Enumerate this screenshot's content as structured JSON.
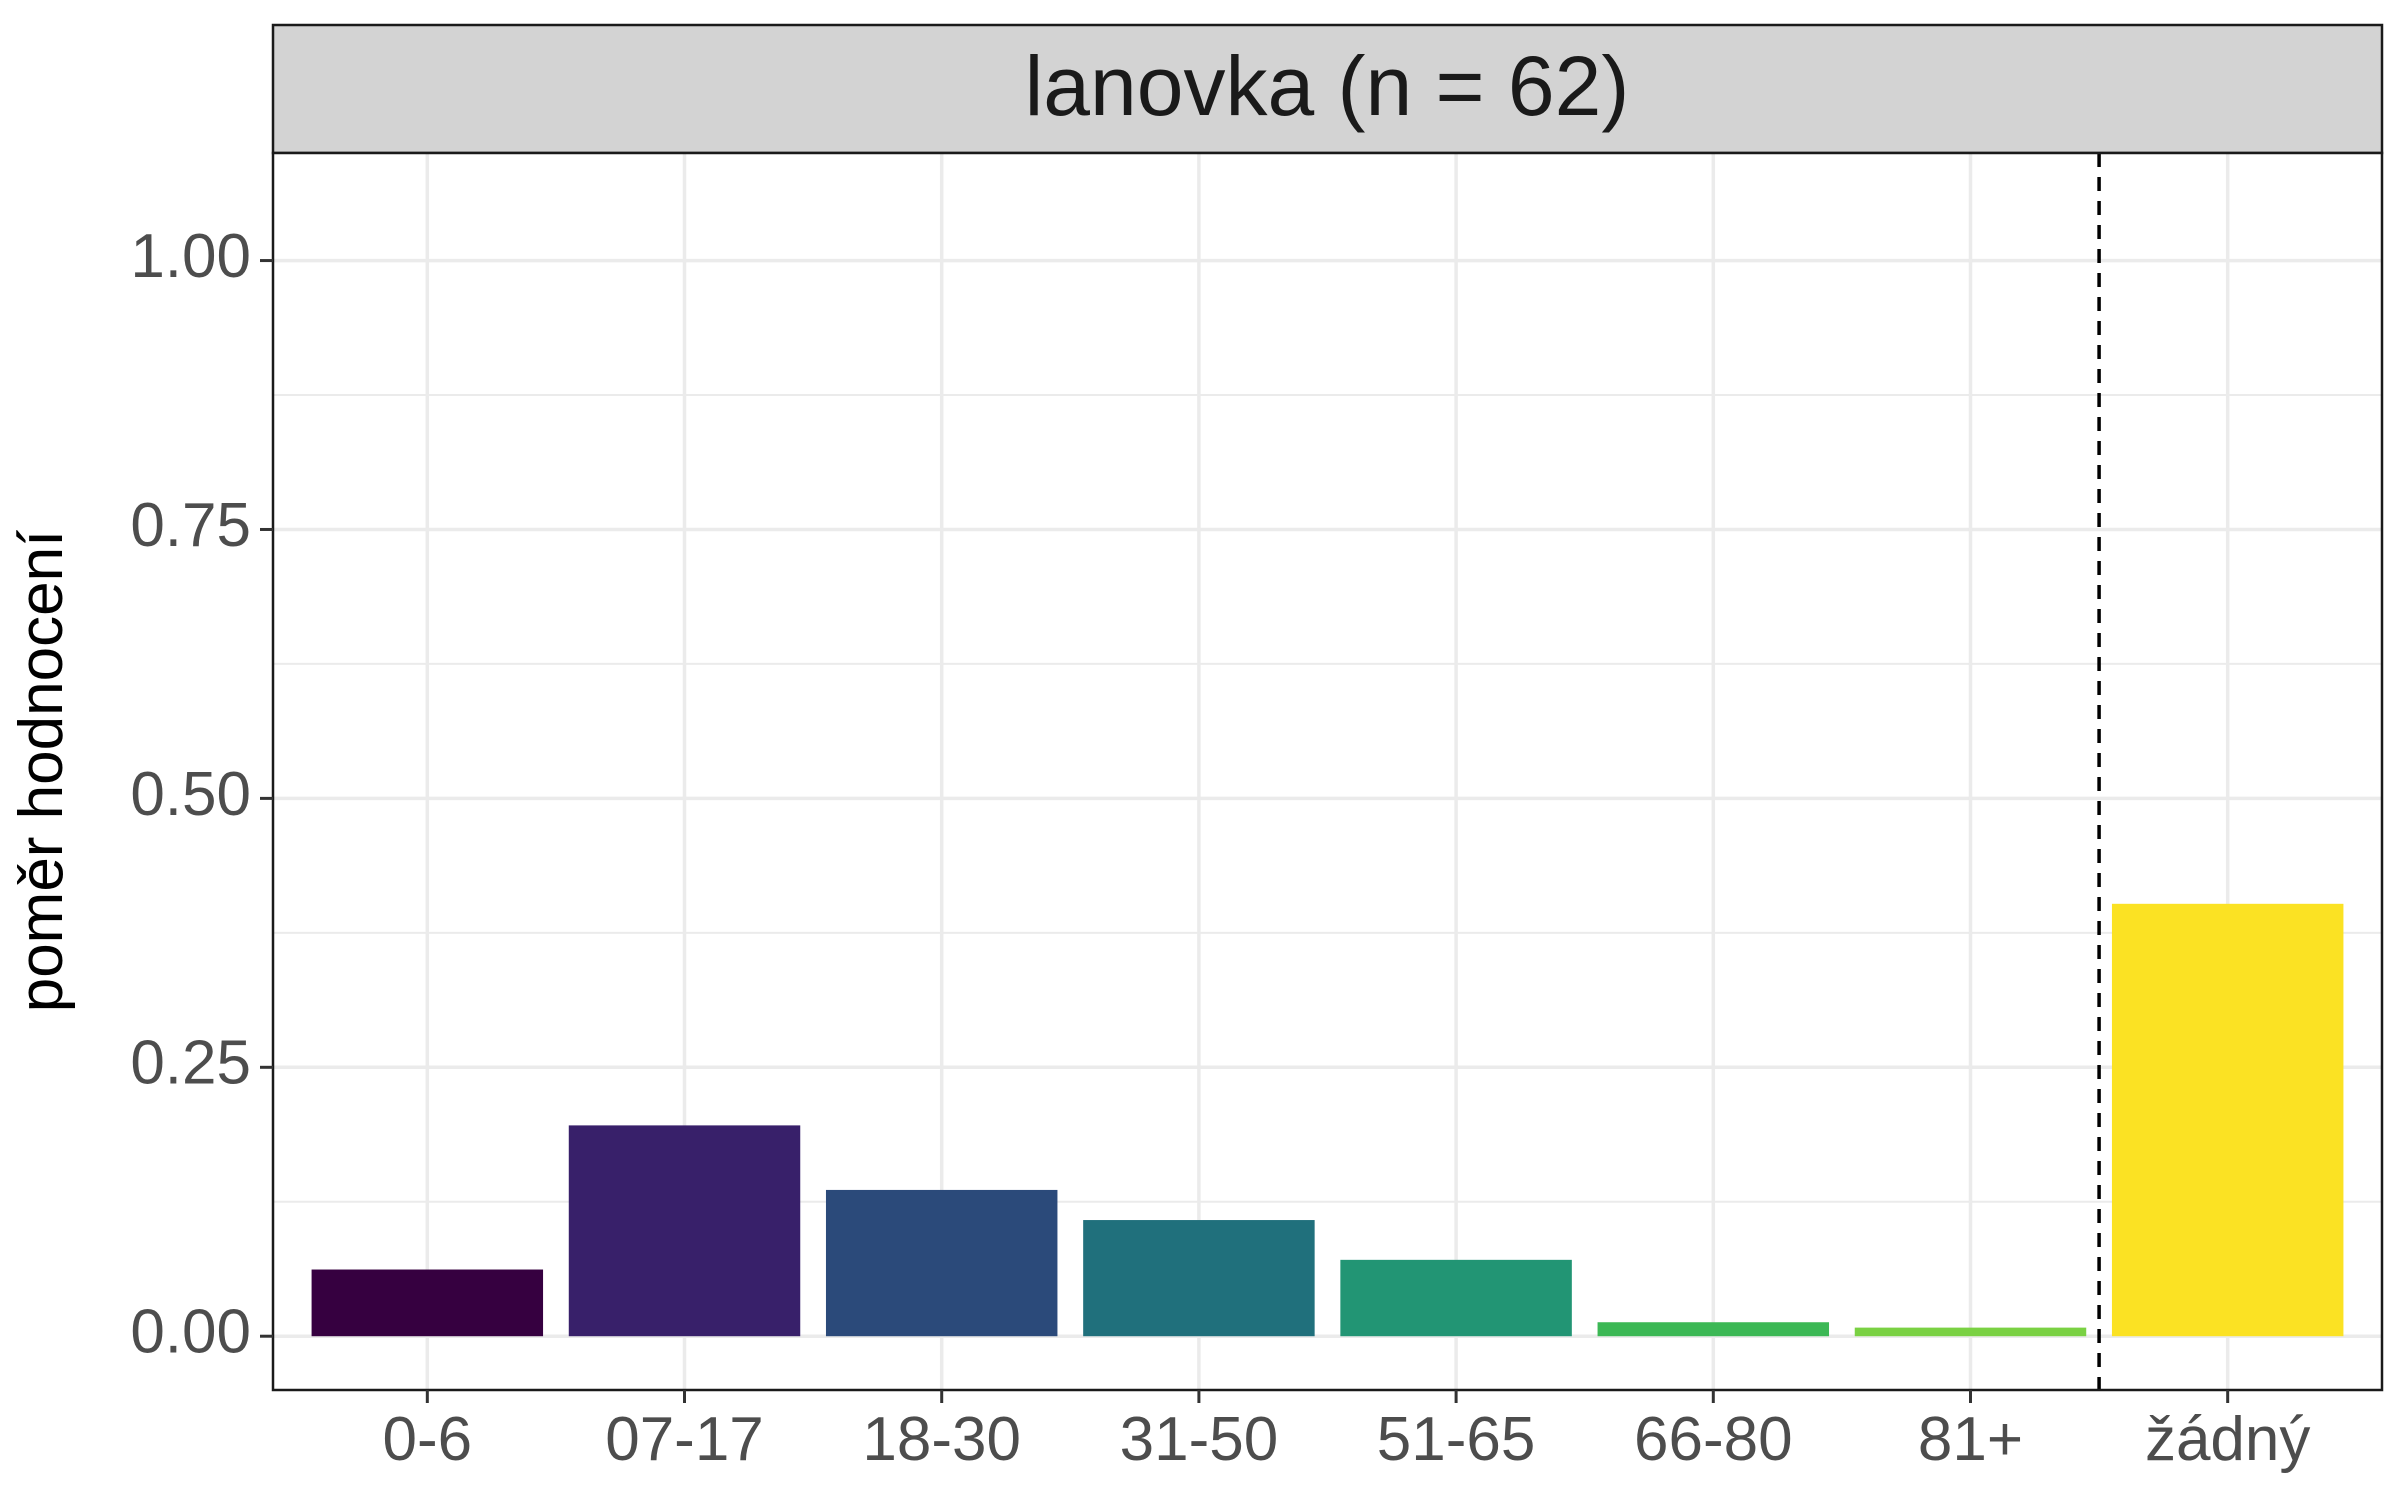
{
  "chart_data": {
    "type": "bar",
    "title": "lanovka (n = 62)",
    "xlabel": "",
    "ylabel": "poměr hodnocení",
    "categories": [
      "0-6",
      "07-17",
      "18-30",
      "31-50",
      "51-65",
      "66-80",
      "81+",
      "žádný"
    ],
    "values": [
      0.062,
      0.196,
      0.136,
      0.108,
      0.071,
      0.013,
      0.008,
      0.402
    ],
    "colors": [
      "#360040",
      "#38206A",
      "#2B4A7A",
      "#20707C",
      "#229574",
      "#3CB855",
      "#7AD143",
      "#FBE223"
    ],
    "ylim": [
      -0.05,
      1.1
    ],
    "yticks": [
      0.0,
      0.25,
      0.5,
      0.75,
      1.0
    ],
    "ytick_labels": [
      "0.00",
      "0.25",
      "0.50",
      "0.75",
      "1.00"
    ],
    "grid": true,
    "reference_line": {
      "between_categories": [
        "81+",
        "žádný"
      ],
      "style": "dashed"
    }
  }
}
